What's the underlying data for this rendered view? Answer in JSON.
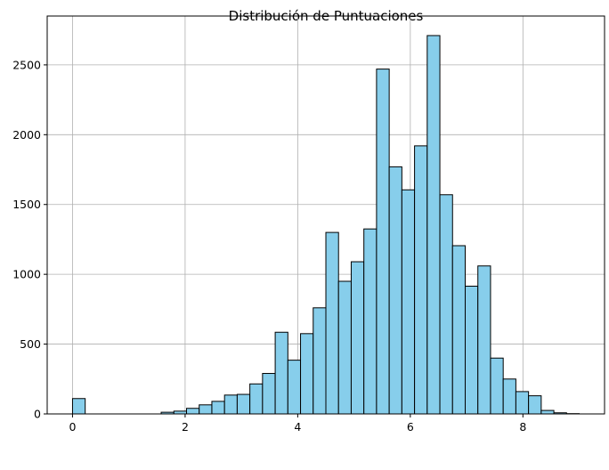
{
  "chart_data": {
    "type": "bar",
    "title": "Distribución de Puntuaciones",
    "xlabel": "",
    "ylabel": "",
    "xlim": [
      -0.45,
      9.45
    ],
    "ylim": [
      0,
      2850
    ],
    "grid": true,
    "bar_color": "#87CEEB",
    "edge_color": "#000000",
    "grid_color": "#b0b0b0",
    "bin_width": 0.225,
    "bins": [
      {
        "x0": 0.0,
        "value": 110
      },
      {
        "x0": 0.225,
        "value": 0
      },
      {
        "x0": 0.45,
        "value": 0
      },
      {
        "x0": 0.675,
        "value": 0
      },
      {
        "x0": 0.9,
        "value": 0
      },
      {
        "x0": 1.125,
        "value": 0
      },
      {
        "x0": 1.35,
        "value": 0
      },
      {
        "x0": 1.575,
        "value": 12
      },
      {
        "x0": 1.8,
        "value": 20
      },
      {
        "x0": 2.025,
        "value": 40
      },
      {
        "x0": 2.25,
        "value": 65
      },
      {
        "x0": 2.475,
        "value": 90
      },
      {
        "x0": 2.7,
        "value": 135
      },
      {
        "x0": 2.925,
        "value": 140
      },
      {
        "x0": 3.15,
        "value": 215
      },
      {
        "x0": 3.375,
        "value": 290
      },
      {
        "x0": 3.6,
        "value": 585
      },
      {
        "x0": 3.825,
        "value": 385
      },
      {
        "x0": 4.05,
        "value": 575
      },
      {
        "x0": 4.275,
        "value": 760
      },
      {
        "x0": 4.5,
        "value": 1300
      },
      {
        "x0": 4.725,
        "value": 950
      },
      {
        "x0": 4.95,
        "value": 1090
      },
      {
        "x0": 5.175,
        "value": 1325
      },
      {
        "x0": 5.4,
        "value": 2470
      },
      {
        "x0": 5.625,
        "value": 1770
      },
      {
        "x0": 5.85,
        "value": 1605
      },
      {
        "x0": 6.075,
        "value": 1920
      },
      {
        "x0": 6.3,
        "value": 2710
      },
      {
        "x0": 6.525,
        "value": 1570
      },
      {
        "x0": 6.75,
        "value": 1205
      },
      {
        "x0": 6.975,
        "value": 915
      },
      {
        "x0": 7.2,
        "value": 1060
      },
      {
        "x0": 7.425,
        "value": 400
      },
      {
        "x0": 7.65,
        "value": 250
      },
      {
        "x0": 7.875,
        "value": 160
      },
      {
        "x0": 8.1,
        "value": 130
      },
      {
        "x0": 8.325,
        "value": 25
      },
      {
        "x0": 8.55,
        "value": 8
      },
      {
        "x0": 8.775,
        "value": 2
      }
    ],
    "x_ticks": [
      0,
      2,
      4,
      6,
      8
    ],
    "x_tick_labels": [
      "0",
      "2",
      "4",
      "6",
      "8"
    ],
    "y_ticks": [
      0,
      500,
      1000,
      1500,
      2000,
      2500
    ],
    "y_tick_labels": [
      "0",
      "500",
      "1000",
      "1500",
      "2000",
      "2500"
    ]
  }
}
